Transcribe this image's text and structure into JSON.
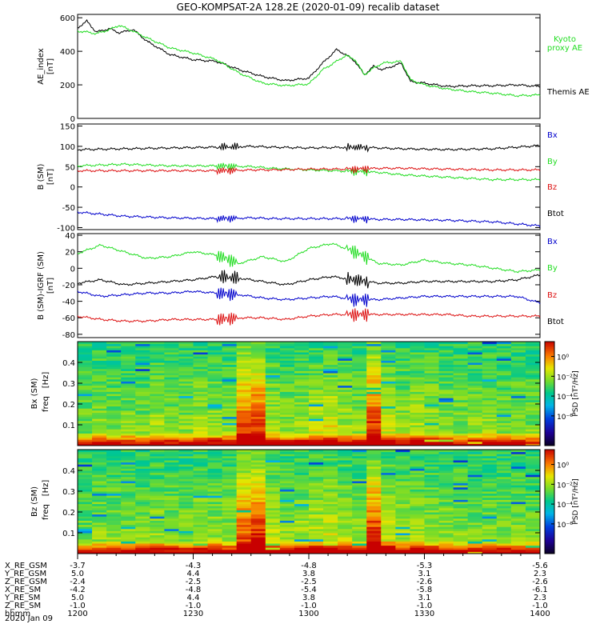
{
  "title": "GEO-KOMPSAT-2A 128.2E (2020-01-09) recalib dataset",
  "colors": {
    "black": "#000000",
    "green": "#22dd22",
    "red": "#dd1111",
    "blue": "#0000cc"
  },
  "chart_data": [
    {
      "id": "ae",
      "type": "line",
      "ylabel": "AE_index",
      "yunit": "[nT]",
      "ylim": [
        0,
        620
      ],
      "yticks": [
        0,
        200,
        400,
        600
      ],
      "x": [
        0,
        0.02,
        0.04,
        0.07,
        0.09,
        0.12,
        0.15,
        0.2,
        0.25,
        0.3,
        0.35,
        0.4,
        0.45,
        0.5,
        0.53,
        0.56,
        0.58,
        0.6,
        0.62,
        0.64,
        0.66,
        0.7,
        0.72,
        0.75,
        0.8,
        0.85,
        0.9,
        0.95,
        1.0
      ],
      "series": [
        {
          "name": "Themis AE",
          "color": "black",
          "values": [
            540,
            580,
            515,
            535,
            510,
            530,
            460,
            380,
            350,
            340,
            290,
            250,
            225,
            240,
            330,
            410,
            380,
            340,
            260,
            310,
            290,
            330,
            220,
            210,
            190,
            195,
            195,
            200,
            190
          ]
        },
        {
          "name": "Kyoto proxy AE",
          "color": "green",
          "values": [
            520,
            515,
            505,
            530,
            555,
            520,
            480,
            420,
            390,
            350,
            270,
            210,
            195,
            205,
            290,
            340,
            375,
            350,
            260,
            300,
            330,
            340,
            230,
            200,
            175,
            160,
            150,
            135,
            140
          ]
        }
      ],
      "legend": [
        {
          "text": "Kyoto proxy AE",
          "color": "green"
        },
        {
          "text": "Themis AE",
          "color": "black"
        }
      ]
    },
    {
      "id": "bsm",
      "type": "line",
      "ylabel": "B (SM)",
      "yunit": "[nT]",
      "ylim": [
        -105,
        155
      ],
      "yticks": [
        -100,
        -50,
        0,
        50,
        100,
        150
      ],
      "x": [
        0,
        0.1,
        0.2,
        0.3,
        0.38,
        0.42,
        0.5,
        0.6,
        0.65,
        0.7,
        0.8,
        0.9,
        1.0
      ],
      "series": [
        {
          "name": "Btot",
          "color": "black",
          "values": [
            92,
            94,
            96,
            98,
            100,
            98,
            96,
            98,
            96,
            94,
            92,
            94,
            102
          ]
        },
        {
          "name": "By",
          "color": "green",
          "values": [
            52,
            56,
            52,
            52,
            50,
            46,
            42,
            38,
            36,
            30,
            24,
            18,
            18
          ]
        },
        {
          "name": "Bz",
          "color": "red",
          "values": [
            40,
            40,
            40,
            40,
            42,
            42,
            44,
            44,
            46,
            46,
            44,
            42,
            42
          ]
        },
        {
          "name": "Bx",
          "color": "blue",
          "values": [
            -62,
            -72,
            -76,
            -78,
            -76,
            -78,
            -78,
            -78,
            -80,
            -80,
            -82,
            -86,
            -96
          ]
        }
      ],
      "legend": [
        {
          "text": "Bx",
          "color": "blue"
        },
        {
          "text": "By",
          "color": "green"
        },
        {
          "text": "Bz",
          "color": "red"
        },
        {
          "text": "Btot",
          "color": "black"
        }
      ]
    },
    {
      "id": "bigrf",
      "type": "line",
      "ylabel": "B (SM)-IGRF (SM)",
      "yunit": "[nT]",
      "ylim": [
        -84,
        42
      ],
      "yticks": [
        -80,
        -60,
        -40,
        -20,
        0,
        20,
        40
      ],
      "x": [
        0,
        0.05,
        0.1,
        0.15,
        0.2,
        0.25,
        0.3,
        0.35,
        0.4,
        0.45,
        0.5,
        0.55,
        0.6,
        0.65,
        0.7,
        0.75,
        0.8,
        0.85,
        0.9,
        0.95,
        1.0
      ],
      "series": [
        {
          "name": "By",
          "color": "green",
          "values": [
            18,
            28,
            20,
            12,
            14,
            20,
            16,
            6,
            14,
            8,
            24,
            30,
            20,
            6,
            4,
            10,
            6,
            4,
            0,
            -4,
            -2
          ]
        },
        {
          "name": "Btot",
          "color": "black",
          "values": [
            -18,
            -14,
            -20,
            -18,
            -16,
            -14,
            -10,
            -12,
            -16,
            -20,
            -14,
            -10,
            -14,
            -18,
            -18,
            -16,
            -16,
            -16,
            -16,
            -14,
            -8
          ]
        },
        {
          "name": "Bx",
          "color": "blue",
          "values": [
            -28,
            -34,
            -32,
            -30,
            -30,
            -28,
            -30,
            -32,
            -36,
            -38,
            -36,
            -34,
            -38,
            -38,
            -36,
            -34,
            -34,
            -34,
            -34,
            -34,
            -42
          ]
        },
        {
          "name": "Bz",
          "color": "red",
          "values": [
            -58,
            -62,
            -64,
            -64,
            -62,
            -62,
            -62,
            -60,
            -60,
            -62,
            -58,
            -56,
            -56,
            -56,
            -56,
            -56,
            -56,
            -58,
            -58,
            -58,
            -58
          ]
        }
      ],
      "legend": [
        {
          "text": "Bx",
          "color": "blue"
        },
        {
          "text": "By",
          "color": "green"
        },
        {
          "text": "Bz",
          "color": "red"
        },
        {
          "text": "Btot",
          "color": "black"
        }
      ]
    },
    {
      "id": "bxspec",
      "type": "heatmap",
      "ylabel": "Bx (SM)",
      "ylabel2": "freq",
      "yunit": "[Hz]",
      "ylim": [
        0,
        0.5
      ],
      "yticks": [
        0.1,
        0.2,
        0.3,
        0.4
      ],
      "colorbar": {
        "label": "PSD [nT²/Hz]",
        "log10_range": [
          -9,
          1.5
        ],
        "ticks": [
          "10⁰",
          "10⁻²",
          "10⁻⁴",
          "10⁻⁶"
        ],
        "tick_log": [
          0,
          -2,
          -4,
          -6
        ]
      },
      "column_boost": [
        0,
        0.3,
        0.1,
        0.2,
        0.1,
        0.5,
        0.2,
        0.3,
        0.5,
        0.4,
        0.3,
        2.5,
        2.8,
        0.6,
        0.3,
        0.4,
        0.8,
        1.0,
        0.5,
        0.3,
        2.8,
        0.8,
        0.4,
        0.6,
        0.5,
        0.3,
        0.2,
        0.3,
        0.4,
        0.2,
        0.3,
        0.1
      ]
    },
    {
      "id": "bzspec",
      "type": "heatmap",
      "ylabel": "Bz (SM)",
      "ylabel2": "freq",
      "yunit": "[Hz]",
      "ylim": [
        0,
        0.5
      ],
      "yticks": [
        0.1,
        0.2,
        0.3,
        0.4
      ],
      "colorbar": {
        "label": "PSD [nT²/Hz]",
        "log10_range": [
          -9,
          1.5
        ],
        "ticks": [
          "10⁰",
          "10⁻²",
          "10⁻⁴",
          "10⁻⁶"
        ],
        "tick_log": [
          0,
          -2,
          -4,
          -6
        ]
      },
      "column_boost": [
        0,
        0.3,
        0.2,
        0.3,
        0.2,
        0.4,
        0.3,
        0.2,
        0.5,
        0.4,
        0.3,
        2.4,
        2.8,
        0.7,
        0.4,
        0.5,
        0.7,
        0.9,
        0.6,
        0.4,
        2.8,
        0.9,
        0.5,
        0.5,
        0.4,
        0.3,
        0.2,
        0.2,
        0.3,
        0.2,
        0.2,
        0.1
      ]
    }
  ],
  "ephemeris": {
    "labels": [
      "X_RE_GSM",
      "Y_RE_GSM",
      "Z_RE_GSM",
      "X_RE_SM",
      "Y_RE_SM",
      "Z_RE_SM",
      "hhmm"
    ],
    "columns": [
      [
        "-3.7",
        "5.0",
        "-2.4",
        "-4.2",
        "5.0",
        "-1.0",
        "1200"
      ],
      [
        "-4.3",
        "4.4",
        "-2.5",
        "-4.8",
        "4.4",
        "-1.0",
        "1230"
      ],
      [
        "-4.8",
        "3.8",
        "-2.5",
        "-5.4",
        "3.8",
        "-1.0",
        "1300"
      ],
      [
        "-5.3",
        "3.1",
        "-2.6",
        "-5.8",
        "3.1",
        "-1.0",
        "1330"
      ],
      [
        "-5.6",
        "2.3",
        "-2.6",
        "-6.1",
        "2.3",
        "-1.0",
        "1400"
      ]
    ],
    "date": "2020 Jan 09"
  }
}
